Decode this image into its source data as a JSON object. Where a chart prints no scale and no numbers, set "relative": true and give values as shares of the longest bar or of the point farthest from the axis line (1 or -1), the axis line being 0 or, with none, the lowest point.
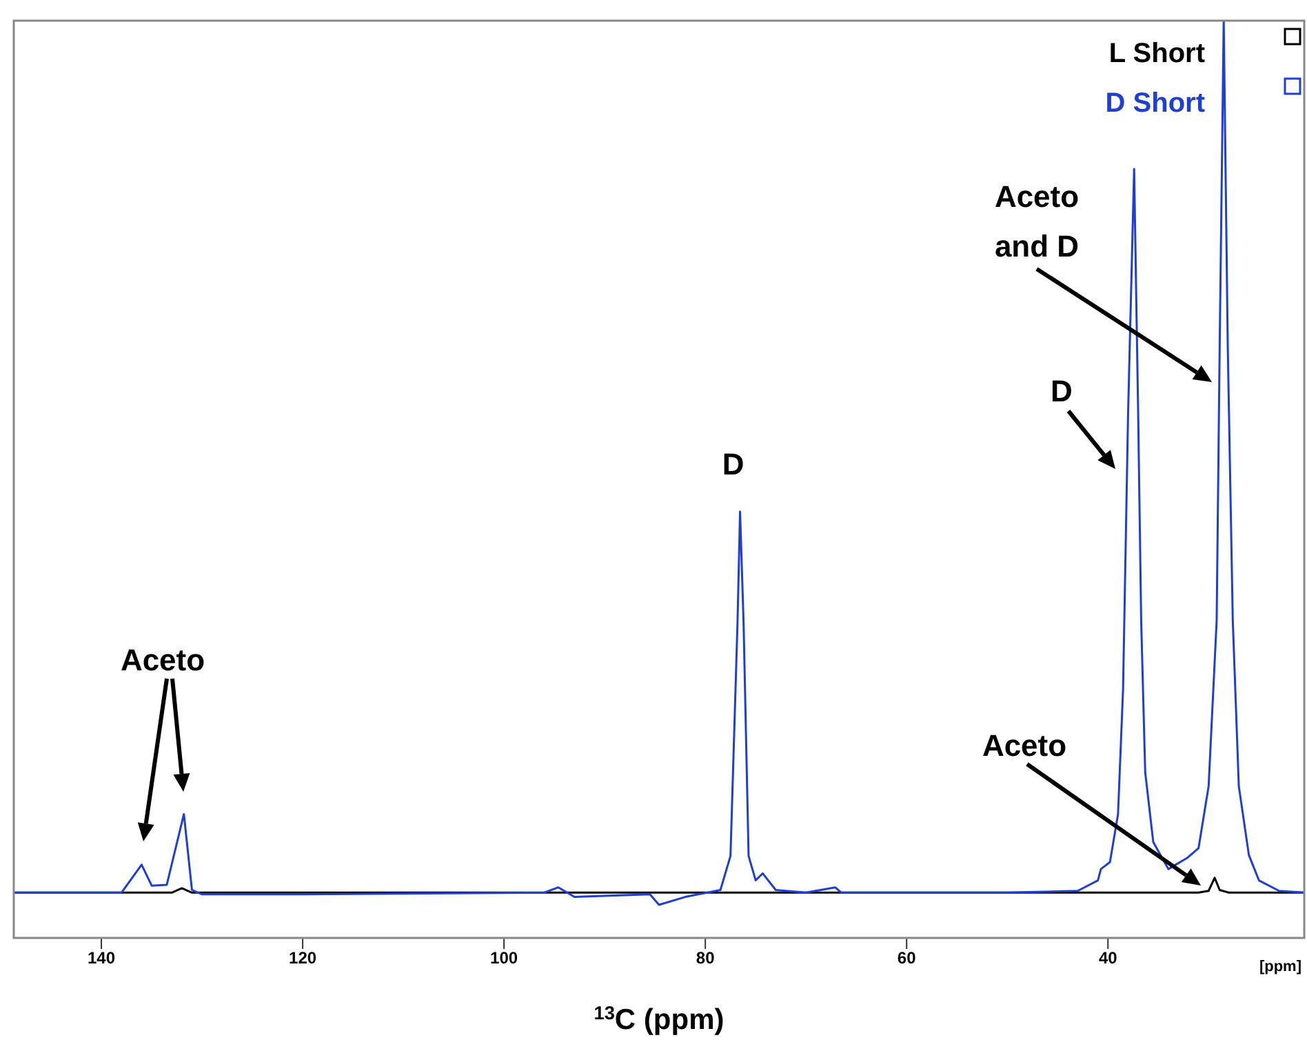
{
  "chart_data": {
    "type": "line",
    "relative": true,
    "xlabel": "$^{13}$C (ppm)",
    "xlim": [
      148.7,
      20.5
    ],
    "xticks": [
      140,
      120,
      100,
      80,
      60,
      40
    ],
    "legend": "top right",
    "marker": "none",
    "line_style": "solid",
    "series": [
      {
        "name": "L Short",
        "color": "#000000",
        "x": [
          148.7,
          133,
          132,
          131,
          31,
          30,
          29.4,
          28.9,
          28,
          20.5
        ],
        "values": [
          0,
          0,
          0.005,
          0,
          0,
          0.002,
          0.017,
          0.003,
          0,
          0
        ]
      },
      {
        "name": "D Short",
        "color": "#1f3fd0",
        "x": [
          148.7,
          138,
          136,
          135,
          133.5,
          131.8,
          131,
          130,
          120,
          96,
          94.6,
          93,
          88,
          85.5,
          84.6,
          82,
          78.5,
          77.5,
          76.8,
          76.55,
          76.2,
          75.7,
          75,
          74.3,
          73,
          70,
          67.1,
          66.5,
          50,
          43,
          41,
          40.7,
          39.8,
          39,
          38.5,
          38,
          37.4,
          37,
          36.7,
          36.3,
          35.5,
          34,
          32.1,
          31,
          30,
          29.2,
          28.9,
          28.5,
          28.1,
          27.6,
          27,
          26,
          25,
          23,
          20.5
        ],
        "values": [
          0,
          0,
          0.032,
          0.008,
          0.009,
          0.09,
          0.003,
          -0.002,
          -0.002,
          0,
          0.006,
          -0.005,
          -0.003,
          -0.002,
          -0.014,
          -0.005,
          0.003,
          0.042,
          0.31,
          0.437,
          0.31,
          0.042,
          0.014,
          0.022,
          0.003,
          0,
          0.006,
          0,
          0,
          0.002,
          0.014,
          0.027,
          0.035,
          0.09,
          0.233,
          0.55,
          0.83,
          0.55,
          0.312,
          0.138,
          0.058,
          0.027,
          0.04,
          0.051,
          0.122,
          0.312,
          0.628,
          1,
          0.628,
          0.312,
          0.122,
          0.043,
          0.014,
          0.002,
          0
        ]
      }
    ],
    "annotations": [
      "Aceto",
      {
        "text": "D",
        "x": 76.55,
        "y": 0.437
      },
      "D",
      "Aceto and D",
      "Aceto",
      "[ppm]"
    ]
  }
}
